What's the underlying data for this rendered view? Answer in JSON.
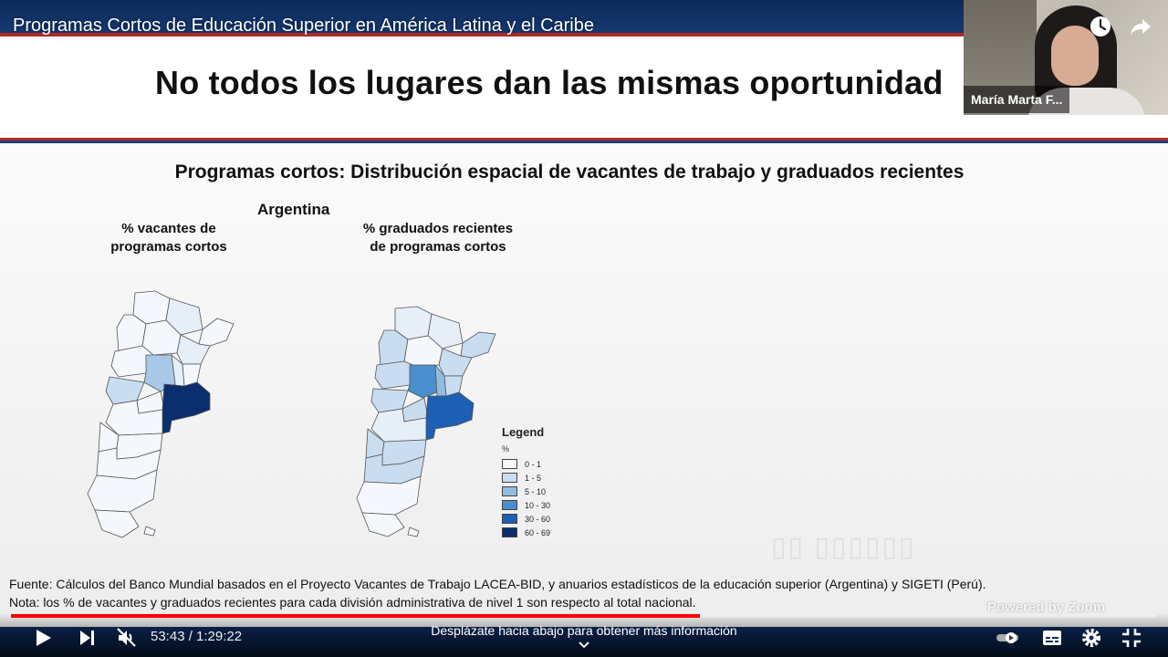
{
  "video": {
    "title": "Programas Cortos de Educación Superior en América Latina y el Caribe"
  },
  "slide": {
    "heading": "No todos los lugares dan las mismas oportunidad",
    "chart_title": "Programas cortos: Distribución espacial de vacantes de trabajo y graduados recientes",
    "country": "Argentina",
    "map1_label_line1": "% vacantes de",
    "map1_label_line2": "programas cortos",
    "map2_label_line1": "% graduados recientes",
    "map2_label_line2": "de programas cortos",
    "legend_title": "Legend",
    "legend_unit": "%",
    "legend": [
      {
        "label": "0 - 1",
        "color": "#f4f7fb"
      },
      {
        "label": "1 - 5",
        "color": "#c9dcf0"
      },
      {
        "label": "5 - 10",
        "color": "#92bce0"
      },
      {
        "label": "10 - 30",
        "color": "#4a8fcd"
      },
      {
        "label": "30 - 60",
        "color": "#1c5fb4"
      },
      {
        "label": "60 - 69",
        "color": "#0b2e6e"
      }
    ],
    "footnote_source": "Fuente: Cálculos del Banco Mundial basados en el Proyecto Vacantes de Trabajo LACEA-BID, y anuarios estadísticos de la educación superior (Argentina) y SIGETI (Perú).",
    "footnote_note": "Nota: los % de vacantes y graduados recientes para cada división administrativa de nivel 1 son respecto al total nacional.",
    "powered_by": "Powered by Zoom"
  },
  "webcam": {
    "participant_name": "María Marta F..."
  },
  "player": {
    "current_time": "53:43",
    "duration": "1:29:22",
    "time_display": "53:43 / 1:29:22",
    "played_fraction": 0.601,
    "loaded_fraction": 0.603,
    "scroll_hint": "Desplázate hacia abajo para obtener más información",
    "icons": {
      "play": "play-icon",
      "next": "next-icon",
      "mute": "volume-muted-icon",
      "autoplay": "autoplay-toggle-icon",
      "subtitles": "subtitles-icon",
      "settings": "gear-icon",
      "exit_fullscreen": "exit-fullscreen-icon",
      "watch_later": "clock-icon",
      "share": "share-icon"
    },
    "colors": {
      "progress": "#ff0000",
      "slide_band": "#0d2a5c",
      "slide_rule": "#b02a2a"
    }
  }
}
